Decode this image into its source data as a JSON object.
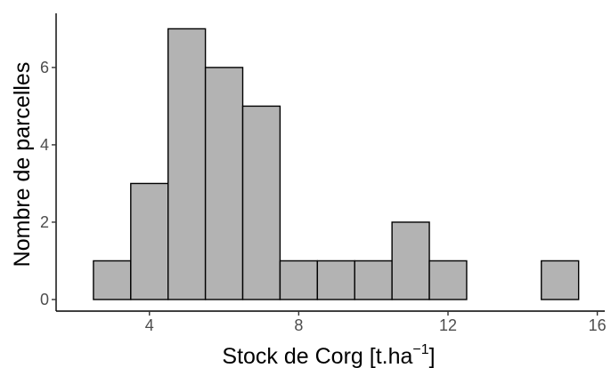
{
  "chart_data": {
    "type": "bar",
    "title": "",
    "xlabel_main": "Stock de Corg [t.ha",
    "xlabel_sup": "−1",
    "xlabel_end": "]",
    "ylabel": "Nombre de parcelles",
    "bin_width": 1,
    "bins": [
      {
        "x": 3,
        "count": 1
      },
      {
        "x": 4,
        "count": 3
      },
      {
        "x": 5,
        "count": 7
      },
      {
        "x": 6,
        "count": 6
      },
      {
        "x": 7,
        "count": 5
      },
      {
        "x": 8,
        "count": 1
      },
      {
        "x": 9,
        "count": 1
      },
      {
        "x": 10,
        "count": 1
      },
      {
        "x": 11,
        "count": 2
      },
      {
        "x": 12,
        "count": 1
      },
      {
        "x": 13,
        "count": 0
      },
      {
        "x": 14,
        "count": 0
      },
      {
        "x": 15,
        "count": 1
      }
    ],
    "xlim": [
      1.5,
      16.2
    ],
    "ylim": [
      -0.3,
      7.4
    ],
    "xticks": [
      4,
      8,
      12,
      16
    ],
    "yticks": [
      0,
      2,
      4,
      6
    ],
    "grid": false,
    "colors": {
      "bar_fill": "#b3b3b3",
      "bar_stroke": "#000000"
    }
  }
}
